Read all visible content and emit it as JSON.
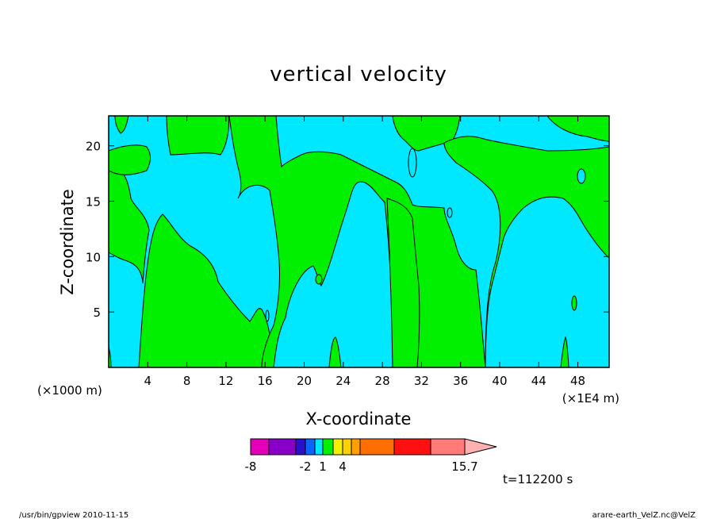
{
  "chart_data": {
    "type": "contour",
    "title": "vertical velocity",
    "xlabel": "X-coordinate",
    "ylabel": "Z-coordinate",
    "x_units_left": "(×1000 m)",
    "x_units_right": "(×1E4 m)",
    "xlim": [
      0,
      51.2
    ],
    "ylim": [
      0,
      22.7
    ],
    "x_ticks": [
      4,
      8,
      12,
      16,
      20,
      24,
      28,
      32,
      36,
      40,
      44,
      48
    ],
    "y_ticks": [
      5,
      10,
      15,
      20
    ],
    "time_label": "t=112200 s",
    "colorbar": {
      "tick_labels": [
        "-8",
        "-2",
        "1",
        "4",
        "15.7"
      ],
      "tick_values": [
        -8,
        -2,
        1,
        4,
        15.7
      ],
      "bins": [
        {
          "color": "#e400b8"
        },
        {
          "color": "#8800c8"
        },
        {
          "color": "#2a10c8"
        },
        {
          "color": "#0a64ff"
        },
        {
          "color": "#00e8ff"
        },
        {
          "color": "#00f000"
        },
        {
          "color": "#f0f000"
        },
        {
          "color": "#ffd000"
        },
        {
          "color": "#ffa000"
        },
        {
          "color": "#ff6e00"
        },
        {
          "color": "#ff1010"
        },
        {
          "color": "#ff7a78"
        },
        {
          "color": "#ffb0b0"
        }
      ]
    },
    "field_levels": [
      {
        "color": "#00e8ff",
        "range": "negative"
      },
      {
        "color": "#00f000",
        "range": "positive"
      }
    ]
  },
  "footer": {
    "left": "/usr/bin/gpview  2010-11-15",
    "right": "arare-earth_VelZ.nc@VelZ"
  }
}
